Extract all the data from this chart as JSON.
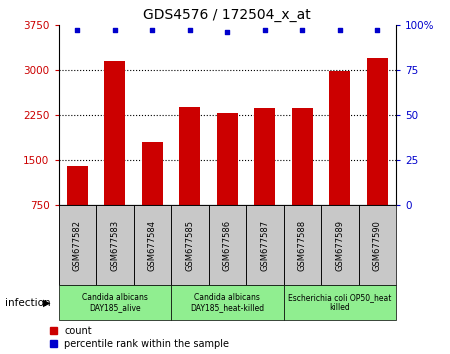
{
  "title": "GDS4576 / 172504_x_at",
  "samples": [
    "GSM677582",
    "GSM677583",
    "GSM677584",
    "GSM677585",
    "GSM677586",
    "GSM677587",
    "GSM677588",
    "GSM677589",
    "GSM677590"
  ],
  "counts": [
    1400,
    3150,
    1800,
    2380,
    2280,
    2360,
    2360,
    2980,
    3200
  ],
  "percentile_ranks": [
    97,
    97,
    97,
    97,
    96,
    97,
    97,
    97,
    97
  ],
  "ylim_left": [
    750,
    3750
  ],
  "ylim_right": [
    0,
    100
  ],
  "yticks_left": [
    750,
    1500,
    2250,
    3000,
    3750
  ],
  "yticks_right": [
    0,
    25,
    50,
    75,
    100
  ],
  "bar_color": "#cc0000",
  "dot_color": "#0000cc",
  "groups": [
    {
      "label": "Candida albicans\nDAY185_alive",
      "start": 0,
      "end": 3,
      "color": "#90ee90"
    },
    {
      "label": "Candida albicans\nDAY185_heat-killed",
      "start": 3,
      "end": 6,
      "color": "#90ee90"
    },
    {
      "label": "Escherichia coli OP50_heat\nkilled",
      "start": 6,
      "end": 9,
      "color": "#90ee90"
    }
  ],
  "infection_label": "infection",
  "legend_count_label": "count",
  "legend_pct_label": "percentile rank within the sample",
  "xlabel_bg": "#c8c8c8",
  "bar_width": 0.55
}
